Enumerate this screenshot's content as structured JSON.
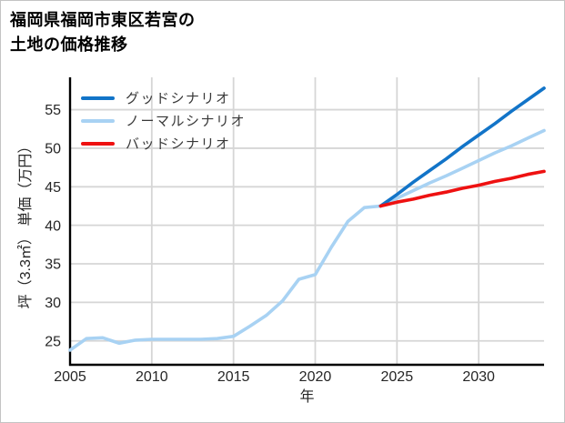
{
  "window": {
    "background": "#ffffff",
    "border_color": "#c4c4c4"
  },
  "title": {
    "line1": "福岡県福岡市東区若宮の",
    "line2": "土地の価格推移"
  },
  "legend": [
    {
      "label": "グッドシナリオ",
      "color": "#1274c8"
    },
    {
      "label": "ノーマルシナリオ",
      "color": "#a8d2f3"
    },
    {
      "label": "バッドシナリオ",
      "color": "#ee1111"
    }
  ],
  "axes": {
    "xlabel": "年",
    "ylabel": "坪（3.3㎡） 単価（万円）",
    "tick_color": "#262626",
    "grid_color": "#d6d6d6",
    "spine_color": "#000000"
  },
  "chart_data": {
    "type": "line",
    "title": "福岡県福岡市東区若宮の土地の価格推移",
    "xlabel": "年",
    "ylabel": "坪（3.3㎡） 単価（万円）",
    "xlim": [
      2005,
      2034
    ],
    "ylim": [
      21.9,
      59.2
    ],
    "x_ticks": [
      2005,
      2010,
      2015,
      2020,
      2025,
      2030
    ],
    "y_ticks": [
      25,
      30,
      35,
      40,
      45,
      50,
      55
    ],
    "grid": true,
    "legend_position": "upper-left-inside",
    "series": [
      {
        "name": "ノーマルシナリオ",
        "color": "#a8d2f3",
        "width": 3.6,
        "x": [
          2005,
          2006,
          2007,
          2008,
          2009,
          2010,
          2011,
          2012,
          2013,
          2014,
          2015,
          2016,
          2017,
          2018,
          2019,
          2020,
          2021,
          2022,
          2023,
          2024,
          2025,
          2026,
          2027,
          2028,
          2029,
          2030,
          2031,
          2032,
          2033,
          2034
        ],
        "y": [
          23.8,
          25.3,
          25.4,
          24.7,
          25.1,
          25.2,
          25.2,
          25.2,
          25.2,
          25.3,
          25.6,
          26.9,
          28.3,
          30.2,
          33.0,
          33.6,
          37.2,
          40.5,
          42.3,
          42.5,
          43.5,
          44.5,
          45.5,
          46.4,
          47.4,
          48.4,
          49.4,
          50.3,
          51.3,
          52.3
        ]
      },
      {
        "name": "グッドシナリオ",
        "color": "#1274c8",
        "width": 3.6,
        "x": [
          2024,
          2025,
          2026,
          2027,
          2028,
          2029,
          2030,
          2031,
          2032,
          2033,
          2034
        ],
        "y": [
          42.5,
          44.0,
          45.6,
          47.1,
          48.6,
          50.2,
          51.7,
          53.2,
          54.8,
          56.3,
          57.8
        ]
      },
      {
        "name": "バッドシナリオ",
        "color": "#ee1111",
        "width": 3.6,
        "x": [
          2024,
          2025,
          2026,
          2027,
          2028,
          2029,
          2030,
          2031,
          2032,
          2033,
          2034
        ],
        "y": [
          42.5,
          43.0,
          43.4,
          43.9,
          44.3,
          44.8,
          45.2,
          45.7,
          46.1,
          46.6,
          47.0
        ]
      }
    ]
  }
}
